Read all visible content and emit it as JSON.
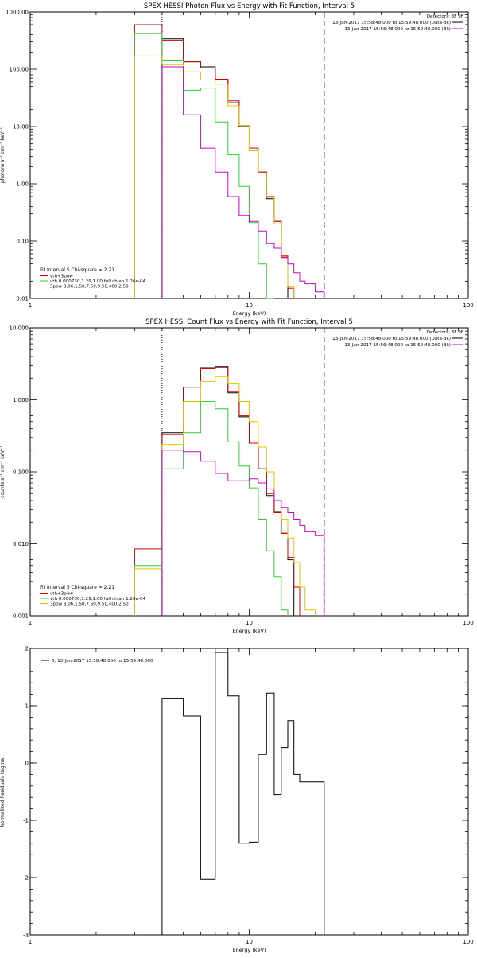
{
  "chart_data": [
    {
      "type": "line",
      "title": "SPEX HESSI Photon Flux vs Energy with Fit Function, Interval 5",
      "xlabel": "Energy (keV)",
      "ylabel": "photons s⁻¹ cm⁻² keV⁻¹",
      "xscale": "log",
      "yscale": "log",
      "xlim": [
        1,
        100
      ],
      "ylim": [
        0.01,
        1000
      ],
      "xticks": [
        {
          "v": 1,
          "label": "1"
        },
        {
          "v": 10,
          "label": "10"
        },
        {
          "v": 100,
          "label": "100"
        }
      ],
      "yticks": [
        {
          "v": 0.01,
          "label": "0.01"
        },
        {
          "v": 0.1,
          "label": "0.10"
        },
        {
          "v": 1,
          "label": "1.00"
        },
        {
          "v": 10,
          "label": "10.00"
        },
        {
          "v": 100,
          "label": "100.00"
        },
        {
          "v": 1000,
          "label": "1000.00"
        }
      ],
      "edges": [
        3,
        4,
        5,
        6,
        7,
        8,
        9,
        10,
        11,
        12,
        13,
        14,
        15,
        16,
        17,
        18,
        20,
        22,
        25,
        28
      ],
      "vlines": [
        {
          "x": 4,
          "style": "dotted"
        },
        {
          "x": 22,
          "style": "dashed"
        }
      ],
      "header_right": [
        "Detectors: 3F 9F",
        "13-Jan-2017 15:58:48.000 to 15:59:48.000 (Data-Bk)",
        "13-Jan-2017 15:56:48.000 to 15:59:48.000 (Bk)"
      ],
      "legend_header": [
        "Fit Interval 5   Chi-square = 2.21"
      ],
      "legend": [
        {
          "name": "vth+3pow",
          "color": "#d00000"
        },
        {
          "name": "vth 0.000730,1.29,1.00  full chian 1.26e-04",
          "color": "#33cc33"
        },
        {
          "name": "3pow 3.06,1.50,7.50,9.50,400,2.50",
          "color": "#e6c200"
        }
      ],
      "series": [
        {
          "name": "Data-Bk",
          "color": "#000000",
          "values": [
            null,
            340,
            135,
            110,
            65,
            26,
            10,
            3.8,
            1.6,
            0.55,
            0.22,
            0.052,
            null,
            null,
            null,
            null,
            null,
            null,
            null
          ]
        },
        {
          "name": "vth+3pow",
          "color": "#d00000",
          "values": [
            600,
            320,
            135,
            105,
            67,
            28,
            10.5,
            4.2,
            1.6,
            0.6,
            0.22,
            0.055,
            0.015,
            null,
            null,
            null,
            null,
            null,
            null
          ]
        },
        {
          "name": "vth",
          "color": "#33cc33",
          "values": [
            420,
            140,
            43,
            47,
            12,
            3.2,
            0.9,
            0.21,
            0.04,
            0.009,
            null,
            null,
            null,
            null,
            null,
            null,
            null,
            null,
            null
          ]
        },
        {
          "name": "3pow",
          "color": "#e6c200",
          "values": [
            170,
            120,
            90,
            65,
            55,
            23,
            10.5,
            3.8,
            1.55,
            0.58,
            0.2,
            0.05,
            0.016,
            null,
            null,
            null,
            null,
            null,
            null
          ]
        },
        {
          "name": "Bk",
          "color": "#cc00cc",
          "values": [
            null,
            110,
            16,
            4.2,
            1.6,
            0.6,
            0.28,
            0.22,
            0.15,
            0.09,
            0.075,
            0.052,
            0.04,
            0.028,
            0.02,
            0.018,
            0.013,
            null,
            null
          ]
        }
      ]
    },
    {
      "type": "line",
      "title": "SPEX HESSI Count Flux vs Energy with Fit Function, Interval 5",
      "xlabel": "Energy (keV)",
      "ylabel": "counts s⁻¹ cm⁻² keV⁻¹",
      "xscale": "log",
      "yscale": "log",
      "xlim": [
        1,
        100
      ],
      "ylim": [
        0.001,
        10
      ],
      "xticks": [
        {
          "v": 1,
          "label": "1"
        },
        {
          "v": 10,
          "label": "10"
        },
        {
          "v": 100,
          "label": "100"
        }
      ],
      "yticks": [
        {
          "v": 0.001,
          "label": "0.001"
        },
        {
          "v": 0.01,
          "label": "0.010"
        },
        {
          "v": 0.1,
          "label": "0.100"
        },
        {
          "v": 1,
          "label": "1.000"
        },
        {
          "v": 10,
          "label": "10.000"
        }
      ],
      "edges": [
        3,
        4,
        5,
        6,
        7,
        8,
        9,
        10,
        11,
        12,
        13,
        14,
        15,
        16,
        17,
        18,
        20,
        22,
        25,
        28
      ],
      "vlines": [
        {
          "x": 4,
          "style": "dotted"
        },
        {
          "x": 22,
          "style": "dashed"
        }
      ],
      "header_right": [
        "Detectors: 3F 9F",
        "13-Jan-2017 15:58:48.000 to 15:59:48.000 (Data-Bk)",
        "13-Jan-2017 15:56:48.000 to 15:59:48.000 (Bk)"
      ],
      "legend_header": [
        "Fit Interval 5   Chi-square = 2.21"
      ],
      "legend": [
        {
          "name": "vth+3pow",
          "color": "#d00000"
        },
        {
          "name": "vth 0.000730,1.29,1.00  full chian 1.26e-04",
          "color": "#33cc33"
        },
        {
          "name": "3pow 3.06,1.50,7.50,9.50,400,2.50",
          "color": "#e6c200"
        }
      ],
      "series": [
        {
          "name": "Data-Bk",
          "color": "#000000",
          "values": [
            null,
            0.35,
            1.5,
            2.8,
            2.9,
            1.25,
            0.58,
            0.25,
            0.11,
            0.047,
            0.028,
            0.014,
            0.006,
            null,
            null,
            null,
            null,
            null,
            null
          ]
        },
        {
          "name": "vth+3pow",
          "color": "#d00000",
          "values": [
            0.0085,
            0.33,
            1.5,
            2.7,
            2.8,
            1.3,
            0.6,
            0.25,
            0.11,
            0.05,
            0.027,
            0.014,
            0.0065,
            0.0025,
            null,
            null,
            null,
            null,
            null
          ]
        },
        {
          "name": "vth",
          "color": "#33cc33",
          "values": [
            0.005,
            0.11,
            0.35,
            0.95,
            0.75,
            0.26,
            0.12,
            0.06,
            0.022,
            0.008,
            0.0035,
            0.0012,
            null,
            null,
            null,
            null,
            null,
            null,
            null
          ]
        },
        {
          "name": "3pow",
          "color": "#e6c200",
          "values": [
            0.0045,
            0.24,
            0.95,
            1.8,
            2.1,
            1.7,
            0.95,
            0.5,
            0.22,
            0.1,
            0.04,
            0.022,
            0.012,
            0.0055,
            0.0025,
            0.0012,
            null,
            null,
            null
          ]
        },
        {
          "name": "Bk",
          "color": "#cc00cc",
          "values": [
            null,
            0.2,
            0.19,
            0.14,
            0.095,
            0.075,
            0.075,
            0.08,
            0.07,
            0.058,
            0.04,
            0.032,
            0.027,
            0.022,
            0.018,
            0.015,
            0.013,
            null,
            null
          ]
        }
      ]
    },
    {
      "type": "line",
      "title": "",
      "xlabel": "Energy (keV)",
      "ylabel": "Normalized Residuals (sigma)",
      "xscale": "log",
      "yscale": "linear",
      "xlim": [
        1,
        100
      ],
      "ylim": [
        -3,
        2
      ],
      "xticks": [
        {
          "v": 1,
          "label": "1"
        },
        {
          "v": 10,
          "label": "10"
        },
        {
          "v": 100,
          "label": "100"
        }
      ],
      "yticks": [
        {
          "v": -3,
          "label": "-3"
        },
        {
          "v": -2,
          "label": "-2"
        },
        {
          "v": -1,
          "label": "-1"
        },
        {
          "v": 0,
          "label": "0"
        },
        {
          "v": 1,
          "label": "1"
        },
        {
          "v": 2,
          "label": "2"
        }
      ],
      "edges": [
        4,
        5,
        6,
        7,
        8,
        9,
        10,
        11,
        12,
        13,
        14,
        15,
        16,
        17,
        18,
        20,
        22
      ],
      "vlines": [],
      "header_right": [],
      "legend_header": [],
      "legend": [
        {
          "name": "5, 13-Jan-2017 15:58:48.000 to 15:59:48.000",
          "color": "#000000"
        }
      ],
      "series": [
        {
          "name": "5, 13-Jan-2017 15:58:48.000 to 15:59:48.000",
          "color": "#000000",
          "values": [
            1.13,
            0.82,
            -2.03,
            1.93,
            1.17,
            -1.4,
            -1.38,
            0.15,
            1.22,
            -0.55,
            0.27,
            0.74,
            -0.2,
            -0.33,
            -0.33,
            -0.33
          ]
        }
      ]
    }
  ]
}
